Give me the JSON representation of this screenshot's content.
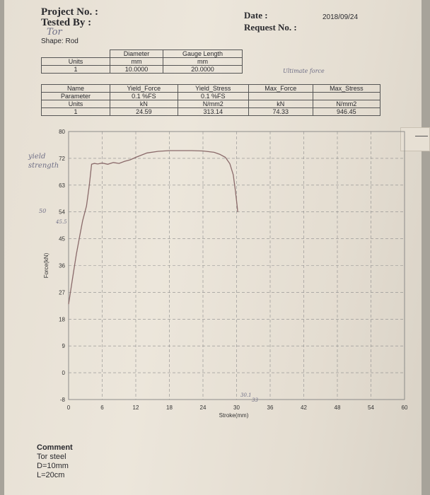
{
  "header": {
    "project_label": "Project No. :",
    "tested_by_label": "Tested By :",
    "tested_by_handwritten": "Tor",
    "shape_label": "Shape: Rod",
    "date_label": "Date :",
    "date_value": "2018/09/24",
    "request_label": "Request No. :"
  },
  "specimen_table": {
    "row_labels": [
      "Units",
      "1"
    ],
    "headers": [
      "Diameter",
      "Gauge Length"
    ],
    "units": [
      "mm",
      "mm"
    ],
    "values": [
      "10.0000",
      "20.0000"
    ]
  },
  "handwritten_annotation_ultimate": "Ultimate force",
  "results_table": {
    "row_labels": [
      "Name",
      "Parameter",
      "Units",
      "1"
    ],
    "columns": [
      {
        "name": "Yield_Force",
        "parameter": "0.1 %FS",
        "unit": "kN",
        "value": "24.59"
      },
      {
        "name": "Yield_Stress",
        "parameter": "0.1 %FS",
        "unit": "N/mm2",
        "value": "313.14"
      },
      {
        "name": "Max_Force",
        "parameter": "",
        "unit": "kN",
        "value": "74.33"
      },
      {
        "name": "Max_Stress",
        "parameter": "",
        "unit": "N/mm2",
        "value": "946.45"
      }
    ]
  },
  "chart_data": {
    "type": "line",
    "xlabel": "Stroke(mm)",
    "ylabel": "Force(kN)",
    "xlim": [
      0,
      60
    ],
    "ylim": [
      -8,
      80
    ],
    "x_ticks": [
      "0",
      "6",
      "12",
      "18",
      "24",
      "30",
      "36",
      "42",
      "48",
      "54",
      "60"
    ],
    "y_ticks": [
      "80",
      "72",
      "63",
      "54",
      "45",
      "36",
      "27",
      "18",
      "9",
      "0",
      "-8"
    ],
    "grid": true,
    "series": [
      {
        "x": [
          0,
          0.4,
          0.9,
          1.4,
          2.0,
          2.5,
          3.2,
          3.7,
          4.1,
          4.6,
          5.2,
          6.0,
          7.0,
          8.0,
          9.0,
          10.0,
          11.0,
          12.0,
          14.0,
          16.0,
          18.0,
          20.0,
          22.0,
          24.0,
          26.0,
          27.0,
          28.0,
          28.8,
          29.4,
          29.8,
          30.1,
          30.2
        ],
        "y": [
          23,
          28,
          34,
          40,
          46,
          51,
          56,
          63,
          70,
          70.3,
          70.1,
          70.4,
          70,
          70.6,
          70.3,
          71,
          71.5,
          72.3,
          73.6,
          74.1,
          74.3,
          74.3,
          74.3,
          74.2,
          73.8,
          73.2,
          72.3,
          70.2,
          66.5,
          61,
          56,
          54
        ]
      }
    ]
  },
  "handwritten_notes": {
    "yield_strength": "yield strength",
    "circled_54": "50",
    "scribble_45": "45.5",
    "near_30": "30.1",
    "near_33": "33"
  },
  "comment": {
    "title": "Comment",
    "lines": [
      "Tor steel",
      "D=10mm",
      "L=20cm"
    ]
  }
}
